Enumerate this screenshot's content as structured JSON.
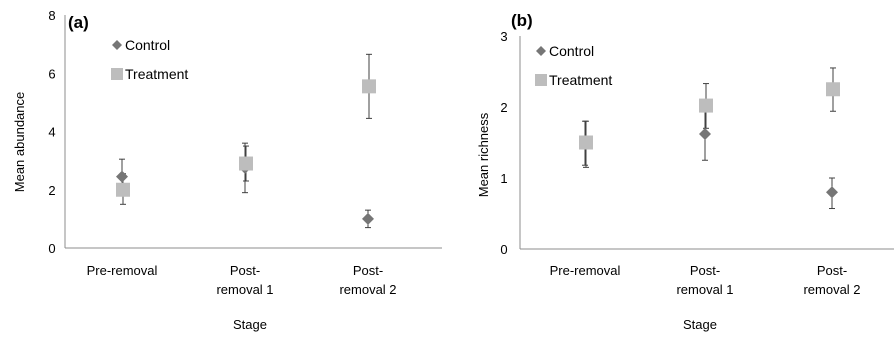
{
  "chart_data": [
    {
      "type": "scatter",
      "panel_label": "(a)",
      "xlabel": "Stage",
      "ylabel": "Mean abundance",
      "categories": [
        [
          "Pre-removal"
        ],
        [
          "Post-",
          "removal 1"
        ],
        [
          "Post-",
          "removal 2"
        ]
      ],
      "ylim": [
        0,
        8
      ],
      "yticks": [
        0,
        2,
        4,
        6,
        8
      ],
      "grid": false,
      "legend_position": "top-left",
      "series": [
        {
          "name": "Control",
          "marker": "diamond",
          "color": "#767676",
          "values": [
            2.45,
            2.75,
            1.0
          ],
          "error_low": [
            1.8,
            1.9,
            0.7
          ],
          "error_high": [
            3.05,
            3.6,
            1.3
          ]
        },
        {
          "name": "Treatment",
          "marker": "square",
          "color": "#bdbdbd",
          "values": [
            2.0,
            2.9,
            5.55
          ],
          "error_low": [
            1.5,
            2.3,
            4.45
          ],
          "error_high": [
            2.55,
            3.5,
            6.65
          ]
        }
      ]
    },
    {
      "type": "scatter",
      "panel_label": "(b)",
      "xlabel": "Stage",
      "ylabel": "Mean richness",
      "categories": [
        [
          "Pre-removal"
        ],
        [
          "Post-",
          "removal 1"
        ],
        [
          "Post-",
          "removal 2"
        ]
      ],
      "ylim": [
        0,
        3
      ],
      "yticks": [
        0,
        1,
        2,
        3
      ],
      "grid": false,
      "legend_position": "top-left",
      "series": [
        {
          "name": "Control",
          "marker": "diamond",
          "color": "#767676",
          "values": [
            1.5,
            1.62,
            0.8
          ],
          "error_low": [
            1.18,
            1.25,
            0.57
          ],
          "error_high": [
            1.8,
            2.0,
            1.0
          ]
        },
        {
          "name": "Treatment",
          "marker": "square",
          "color": "#bdbdbd",
          "values": [
            1.5,
            2.02,
            2.25
          ],
          "error_low": [
            1.15,
            1.7,
            1.94
          ],
          "error_high": [
            1.8,
            2.33,
            2.55
          ]
        }
      ]
    }
  ]
}
